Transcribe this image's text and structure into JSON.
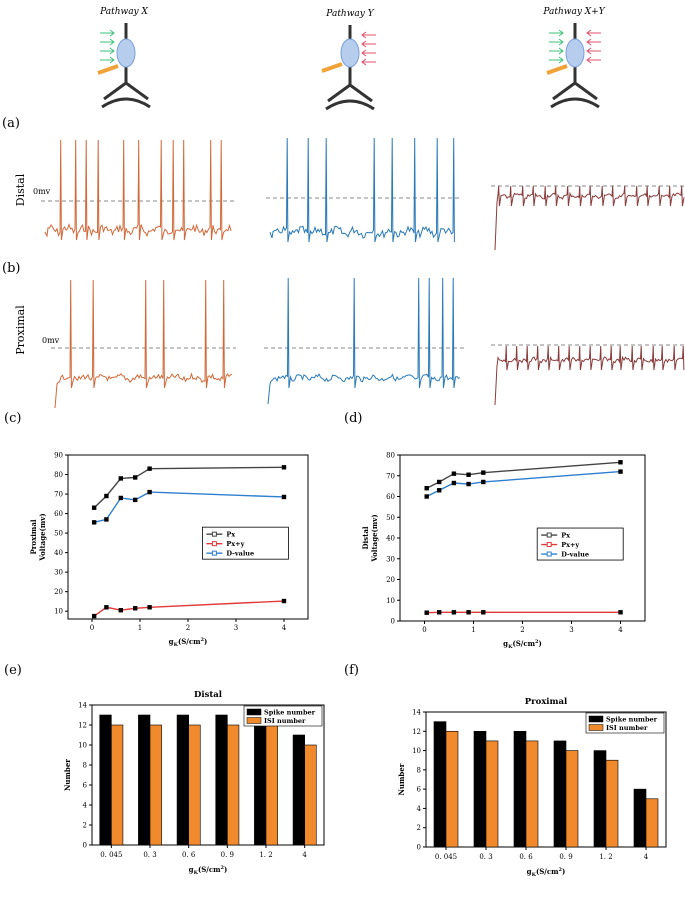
{
  "pathway_titles": [
    "Pathway X",
    "Pathway Y",
    "Pathway X+Y"
  ],
  "panel_labels": {
    "a": "(a)",
    "b": "(b)",
    "c": "(c)",
    "d": "(d)",
    "e": "(e)",
    "f": "(f)"
  },
  "row_labels": {
    "distal": "Distal",
    "proximal": "Proximal"
  },
  "zero_label": "0mv",
  "trace_colors": {
    "x": "#d2693a",
    "y": "#2a7ab8",
    "xy": "#8a3b3b"
  },
  "chart_data": [
    {
      "id": "c",
      "type": "line",
      "title": "",
      "xlabel": "gK(S/cm2)",
      "ylabel": "Proximal\nVoltage(mv)",
      "xlim": [
        -0.5,
        4.5
      ],
      "ylim": [
        6,
        90
      ],
      "xticks": [
        0,
        1,
        2,
        3,
        4
      ],
      "yticks": [
        10,
        20,
        30,
        40,
        50,
        60,
        70,
        80,
        90
      ],
      "grid": false,
      "legend": "center-right",
      "x": [
        0.045,
        0.3,
        0.6,
        0.9,
        1.2,
        4
      ],
      "series": [
        {
          "name": "Px",
          "color": "#444444",
          "values": [
            63,
            69,
            78,
            78.5,
            83,
            83.7
          ]
        },
        {
          "name": "Px+y",
          "color": "#e23a3a",
          "values": [
            7.5,
            12,
            10.5,
            11.5,
            12,
            15.2
          ]
        },
        {
          "name": "D-value",
          "color": "#2f7fd0",
          "values": [
            55.5,
            57,
            68,
            67,
            71,
            68.5
          ]
        }
      ]
    },
    {
      "id": "d",
      "type": "line",
      "title": "",
      "xlabel": "gK(S/cm2)",
      "ylabel": "Distal\nVoltage(mv)",
      "xlim": [
        -0.5,
        4.5
      ],
      "ylim": [
        0,
        80
      ],
      "xticks": [
        0,
        1,
        2,
        3,
        4
      ],
      "yticks": [
        0,
        10,
        20,
        30,
        40,
        50,
        60,
        70,
        80
      ],
      "grid": false,
      "legend": "center-right",
      "x": [
        0.045,
        0.3,
        0.6,
        0.9,
        1.2,
        4
      ],
      "series": [
        {
          "name": "Px",
          "color": "#444444",
          "values": [
            64,
            67,
            71,
            70.5,
            71.5,
            76.5
          ]
        },
        {
          "name": "Px+y",
          "color": "#e23a3a",
          "values": [
            4,
            4.2,
            4.2,
            4.2,
            4.2,
            4.2
          ]
        },
        {
          "name": "D-value",
          "color": "#2f7fd0",
          "values": [
            60,
            63,
            66.5,
            66,
            67,
            72
          ]
        }
      ]
    },
    {
      "id": "e",
      "type": "bar",
      "title": "Distal",
      "xlabel": "gK(S/cm2)",
      "ylabel": "Number",
      "categories": [
        "0. 045",
        "0. 3",
        "0. 6",
        "0. 9",
        "1. 2",
        "4"
      ],
      "ylim": [
        0,
        14
      ],
      "yticks": [
        0,
        2,
        4,
        6,
        8,
        10,
        12,
        14
      ],
      "legend": "top-right",
      "series": [
        {
          "name": "Spike number",
          "color": "#000000",
          "values": [
            13,
            13,
            13,
            13,
            13,
            11
          ]
        },
        {
          "name": "ISI number",
          "color": "#f08a2c",
          "values": [
            12,
            12,
            12,
            12,
            12,
            10
          ]
        }
      ]
    },
    {
      "id": "f",
      "type": "bar",
      "title": "Proximal",
      "xlabel": "gK(S/cm2)",
      "ylabel": "Number",
      "categories": [
        "0. 045",
        "0. 3",
        "0. 6",
        "0. 9",
        "1. 2",
        "4"
      ],
      "ylim": [
        0,
        14
      ],
      "yticks": [
        0,
        2,
        4,
        6,
        8,
        10,
        12,
        14
      ],
      "legend": "top-right",
      "series": [
        {
          "name": "Spike number",
          "color": "#000000",
          "values": [
            13,
            12,
            12,
            11,
            10,
            6
          ]
        },
        {
          "name": "ISI number",
          "color": "#f08a2c",
          "values": [
            12,
            11,
            11,
            10,
            9,
            5
          ]
        }
      ]
    }
  ]
}
